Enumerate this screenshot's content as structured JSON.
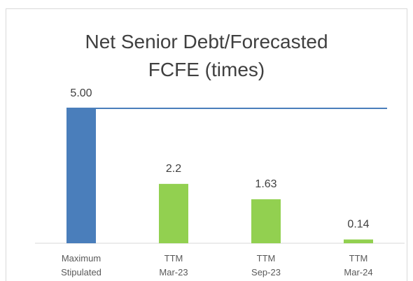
{
  "chart_data": {
    "type": "bar",
    "title": "Net Senior Debt/Forecasted FCFE (times)",
    "categories": [
      [
        "Maximum",
        "Stipulated"
      ],
      [
        "TTM",
        "Mar-23"
      ],
      [
        "TTM",
        "Sep-23"
      ],
      [
        "TTM",
        "Mar-24"
      ]
    ],
    "values": [
      5,
      2.2,
      1.63,
      0.14
    ],
    "value_labels": [
      "5.00",
      "2.2",
      "1.63",
      "0.14"
    ],
    "colors": [
      "#4a7ebb",
      "#92d050",
      "#92d050",
      "#92d050"
    ],
    "limit_line_color": "#4a7ebb"
  }
}
